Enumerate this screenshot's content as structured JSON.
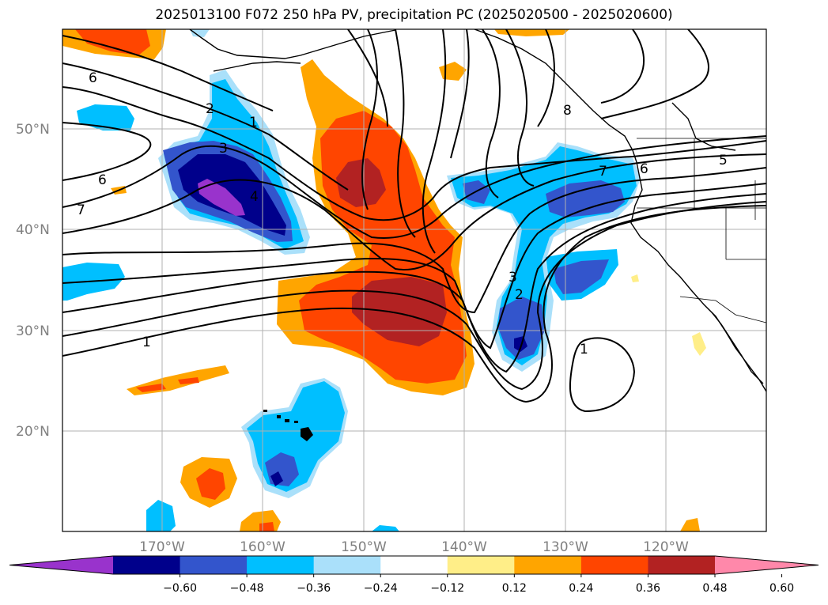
{
  "title": "2025013100 F072 250 hPa PV, precipitation PC (2025020500 - 2025020600)",
  "map": {
    "lat_labels": [
      "50°N",
      "40°N",
      "30°N",
      "20°N"
    ],
    "lon_labels": [
      "170°W",
      "160°W",
      "150°W",
      "140°W",
      "130°W",
      "120°W"
    ],
    "contour_labels": [
      "6",
      "2",
      "1",
      "3",
      "4",
      "6",
      "7",
      "1",
      "1",
      "3",
      "2",
      "7",
      "6",
      "5",
      "8"
    ]
  },
  "colorbar": {
    "ticks": [
      "−0.60",
      "−0.48",
      "−0.36",
      "−0.24",
      "−0.12",
      "0.12",
      "0.24",
      "0.36",
      "0.48",
      "0.60"
    ],
    "colors": [
      "#9933cc",
      "#00008b",
      "#3355cc",
      "#00bfff",
      "#aae0fa",
      "#ffffff",
      "#ffee88",
      "#ffa500",
      "#ff4500",
      "#b22222",
      "#ff88aa"
    ]
  }
}
